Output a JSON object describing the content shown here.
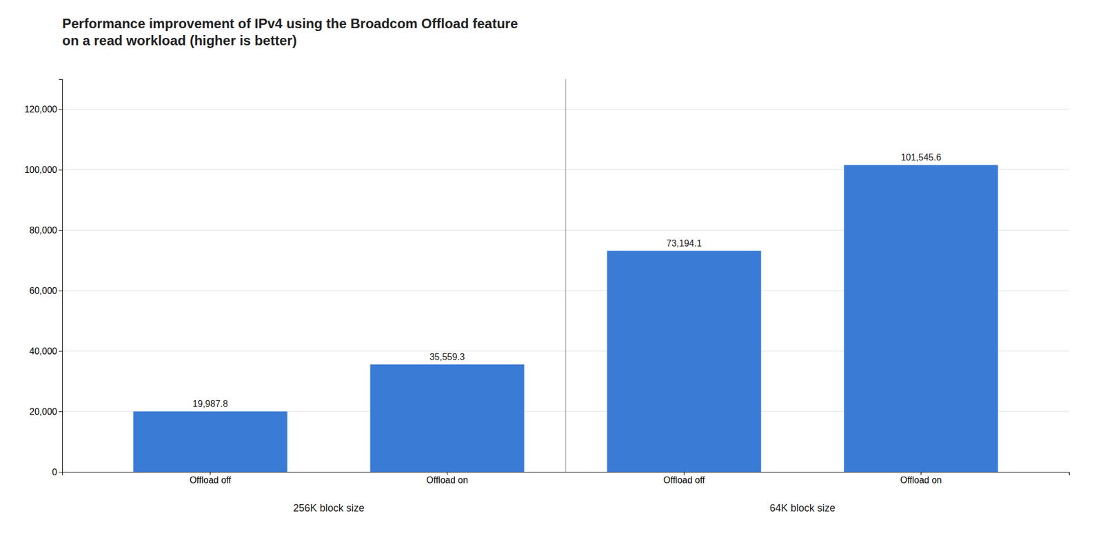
{
  "chart_data": {
    "type": "bar",
    "title": "Performance improvement of IPv4 using the Broadcom Offload feature\non a read workload (higher is better)",
    "categories": [
      "Offload off",
      "Offload on",
      "Offload off",
      "Offload on"
    ],
    "groups": [
      "256K block size",
      "256K block size",
      "64K block size",
      "64K block size"
    ],
    "values": [
      19987.8,
      35559.3,
      73194.1,
      101545.6
    ],
    "value_labels": [
      "19,987.8",
      "35,559.3",
      "73,194.1",
      "101,545.6"
    ],
    "data_labels": true,
    "color": "#3a7bd5",
    "ylim": [
      0,
      130000
    ],
    "yticks": [
      0,
      {
        "value": 20000,
        "label": "20,000"
      },
      {
        "value": 40000,
        "label": "40,000"
      },
      {
        "value": 60000,
        "label": "60,000"
      },
      {
        "value": 80000,
        "label": "80,000"
      },
      {
        "value": 100000,
        "label": "100,000"
      },
      {
        "value": 120000,
        "label": "120,000"
      }
    ],
    "grid": true
  }
}
